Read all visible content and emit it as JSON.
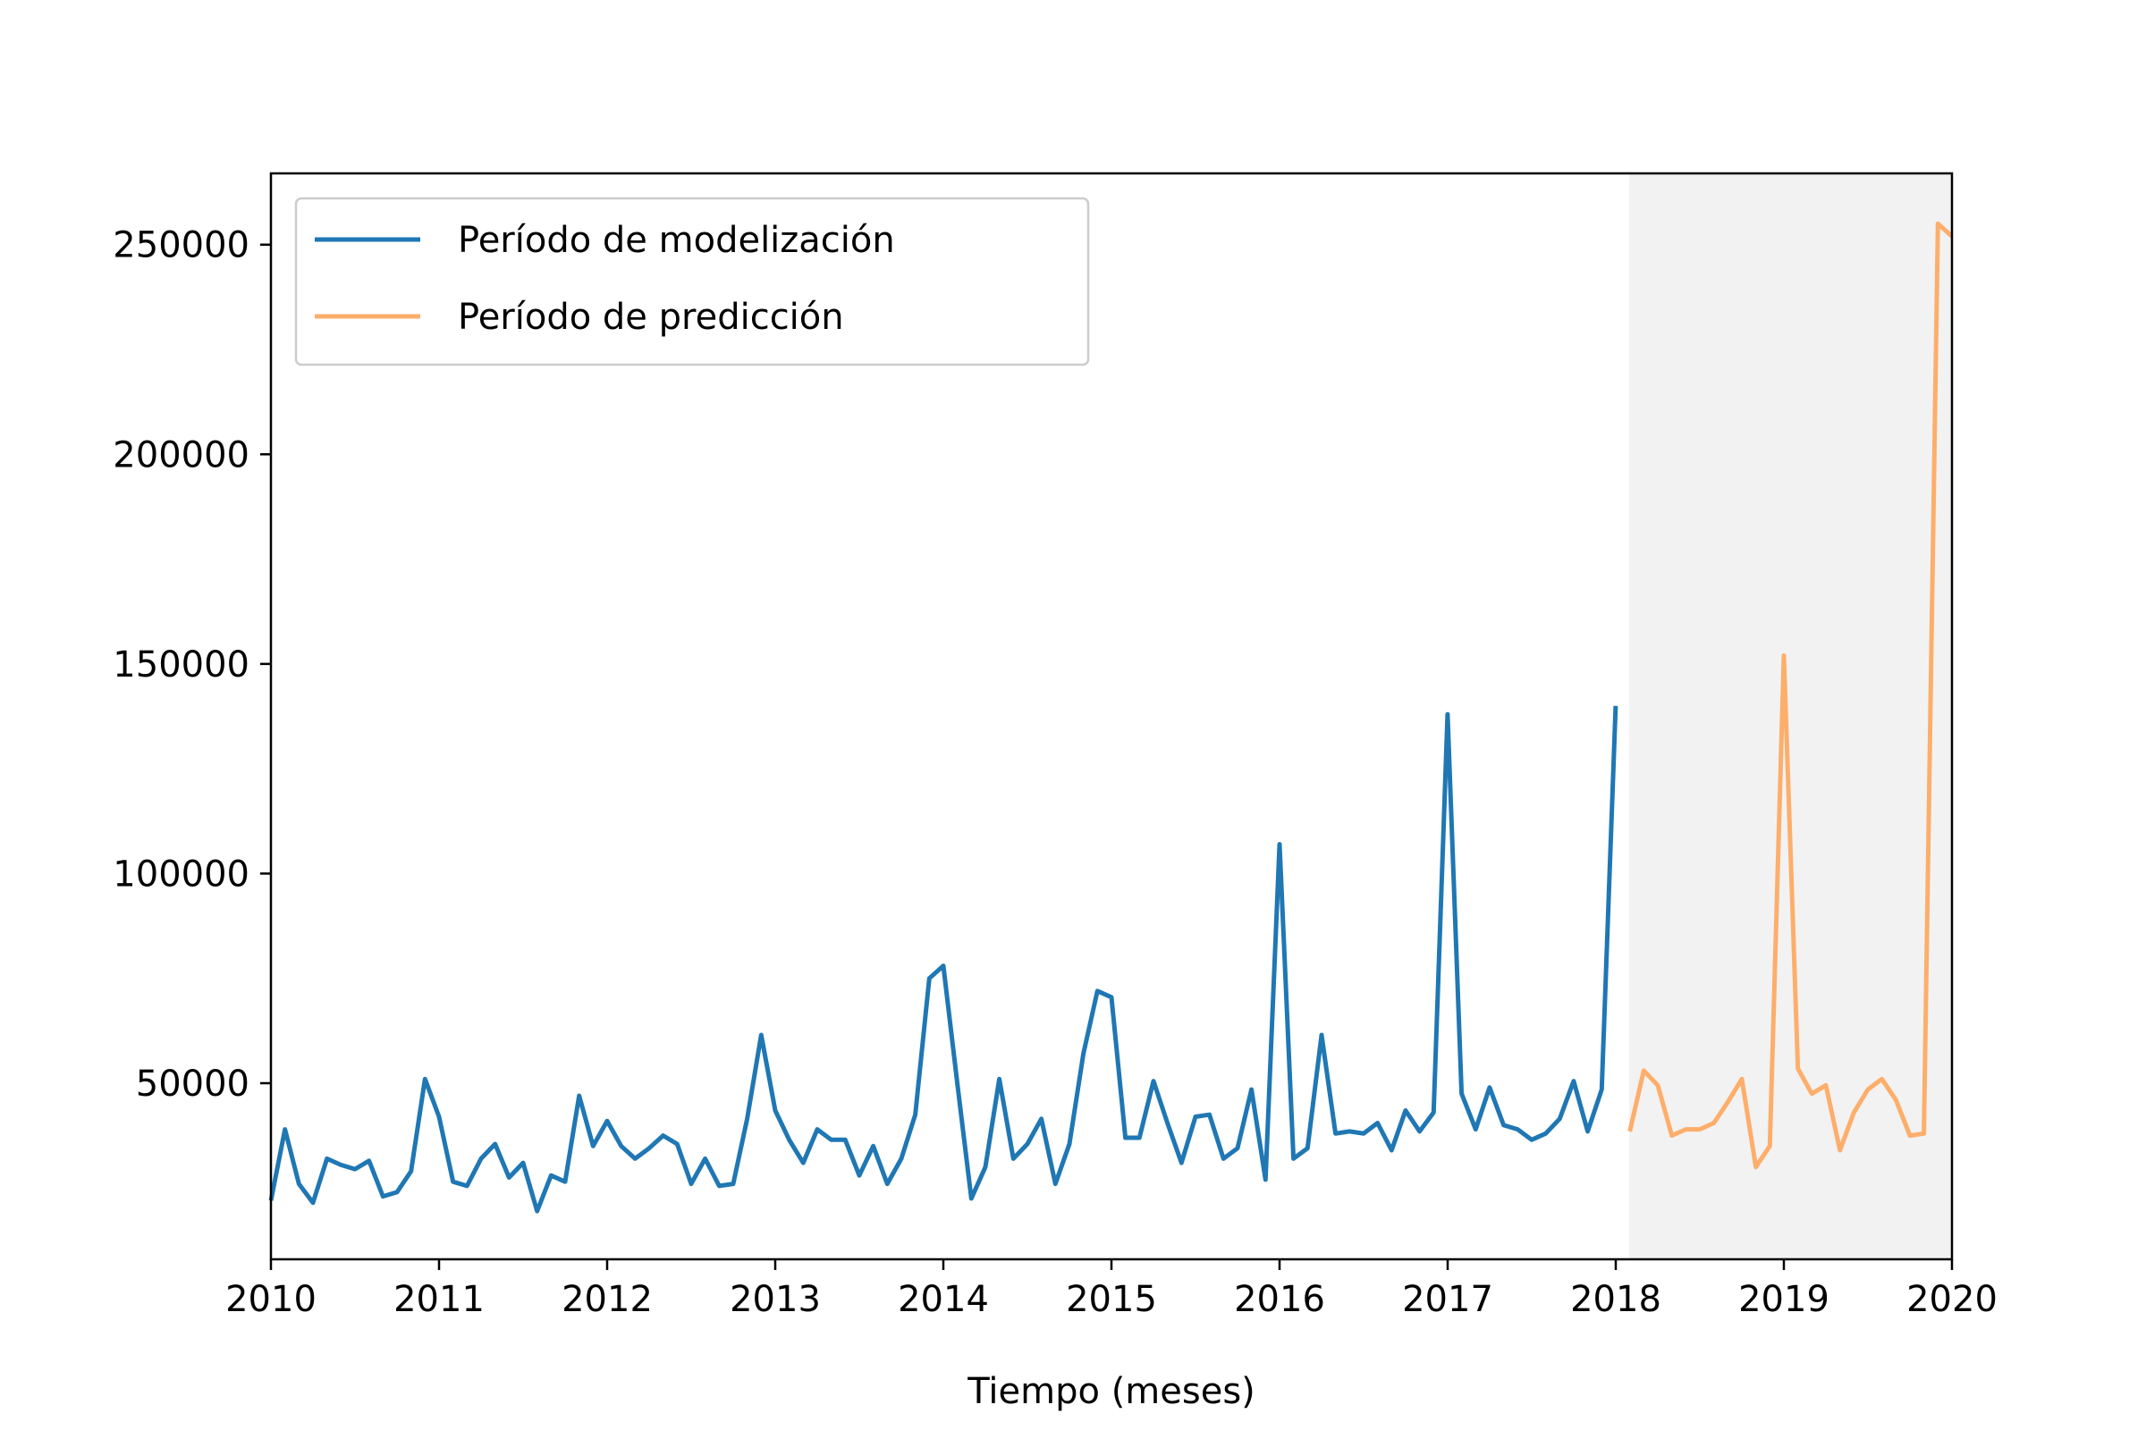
{
  "chart_data": {
    "type": "line",
    "title": "",
    "xlabel": "Tiempo (meses)",
    "ylabel": "",
    "xlim": [
      2010,
      2020
    ],
    "ylim": [
      8000,
      267000
    ],
    "x_ticks": [
      "2010",
      "2011",
      "2012",
      "2013",
      "2014",
      "2015",
      "2016",
      "2017",
      "2018",
      "2019",
      "2020"
    ],
    "y_ticks": [
      "50000",
      "100000",
      "150000",
      "200000",
      "250000"
    ],
    "grid": false,
    "legend_position": "top-left",
    "shaded_region": {
      "x_start": 2018.08,
      "x_end": 2020,
      "color": "#f2f2f2"
    },
    "series": [
      {
        "name": "Período de modelización",
        "color": "#1f77b4",
        "x_start": 2010.0,
        "x_step": 0.08333,
        "values": [
          22000,
          39000,
          26000,
          21500,
          32000,
          30500,
          29500,
          31500,
          23000,
          24000,
          29000,
          51000,
          42000,
          26500,
          25500,
          32000,
          35500,
          27500,
          31000,
          19500,
          28000,
          26500,
          47000,
          35000,
          41000,
          35000,
          32000,
          34500,
          37500,
          35500,
          26000,
          32000,
          25500,
          26000,
          41500,
          61500,
          43500,
          36500,
          31000,
          39000,
          36500,
          36500,
          28000,
          35000,
          26000,
          32000,
          42500,
          75000,
          78000,
          50000,
          22500,
          30000,
          51000,
          32000,
          35500,
          41500,
          26000,
          35500,
          57000,
          72000,
          70500,
          37000,
          37000,
          50500,
          40500,
          31000,
          42000,
          42500,
          32000,
          34500,
          48500,
          27000,
          107000,
          32000,
          34500,
          61500,
          38000,
          38500,
          38000,
          40500,
          34000,
          43500,
          38500,
          43000,
          138000,
          47500,
          39000,
          49000,
          40000,
          39000,
          36500,
          38000,
          41500,
          50500,
          38500,
          48500,
          140000
        ]
      },
      {
        "name": "Período de predicción",
        "color": "#fdae6b",
        "x_start": 2018.0833,
        "x_step": 0.08333,
        "values": [
          38500,
          53000,
          49500,
          37500,
          39000,
          39000,
          40500,
          45500,
          51000,
          30000,
          35000,
          152000,
          53500,
          47500,
          49500,
          34000,
          43000,
          48500,
          51000,
          46000,
          37500,
          38000,
          255000,
          252000
        ]
      }
    ]
  }
}
